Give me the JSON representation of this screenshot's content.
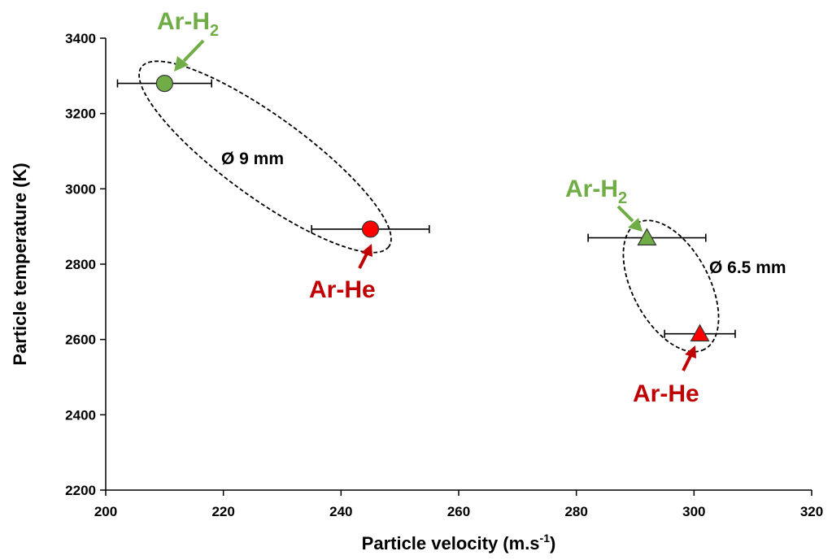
{
  "chart_data": {
    "type": "scatter",
    "xlabel": "Particle velocity (m.s",
    "xlabel_sup": "-1",
    "xlabel_end": ")",
    "ylabel": "Particle temperature (K)",
    "xlim": [
      200,
      320
    ],
    "ylim": [
      2200,
      3400
    ],
    "xticks": [
      "200",
      "220",
      "240",
      "260",
      "280",
      "300",
      "320"
    ],
    "yticks": [
      "2200",
      "2400",
      "2600",
      "2800",
      "3000",
      "3200",
      "3400"
    ],
    "points": [
      {
        "label": "Ar-H2",
        "marker": "circle",
        "color": "#70ad47",
        "x": 210,
        "y": 3280,
        "xerr": [
          202,
          218
        ]
      },
      {
        "label": "Ar-He",
        "marker": "circle",
        "color": "#ff0000",
        "x": 245,
        "y": 2893,
        "xerr": [
          235,
          255
        ]
      },
      {
        "label": "Ar-H2",
        "marker": "triangle",
        "color": "#70ad47",
        "x": 292,
        "y": 2870,
        "xerr": [
          282,
          302
        ]
      },
      {
        "label": "Ar-He",
        "marker": "triangle",
        "color": "#ff0000",
        "x": 301,
        "y": 2615,
        "xerr": [
          295,
          307
        ]
      }
    ],
    "annotations": [
      {
        "text": "Ø 9 mm"
      },
      {
        "text": "Ø 6.5 mm"
      }
    ],
    "series_labels": [
      {
        "text": "Ar-H",
        "sub": "2",
        "color": "#70ad47"
      },
      {
        "text": "Ar-He",
        "color": "#c00000"
      },
      {
        "text": "Ar-H",
        "sub": "2",
        "color": "#70ad47"
      },
      {
        "text": "Ar-He",
        "color": "#c00000"
      }
    ],
    "grid": false,
    "legend": "none"
  }
}
